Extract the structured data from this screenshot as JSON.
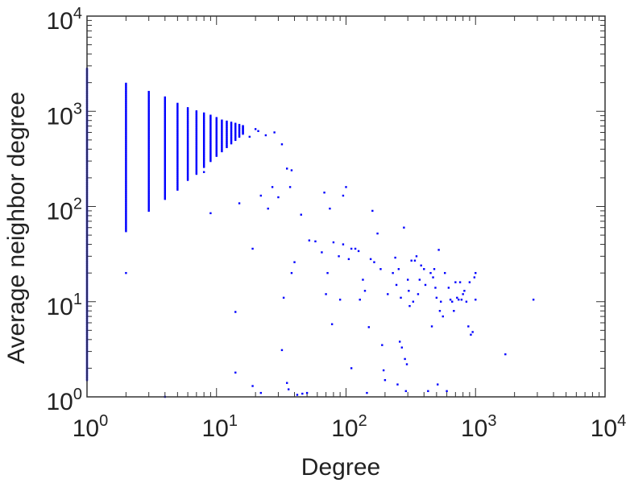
{
  "chart_data": {
    "type": "scatter",
    "title": "",
    "xlabel": "Degree",
    "ylabel": "Average neighbor degree",
    "xscale": "log",
    "yscale": "log",
    "xlim": [
      1,
      10000
    ],
    "ylim": [
      1,
      10000
    ],
    "grid": false,
    "marker_color": "#0000ff",
    "xticks": [
      {
        "value": 1,
        "base": "10",
        "exp": "0"
      },
      {
        "value": 10,
        "base": "10",
        "exp": "1"
      },
      {
        "value": 100,
        "base": "10",
        "exp": "2"
      },
      {
        "value": 1000,
        "base": "10",
        "exp": "3"
      },
      {
        "value": 10000,
        "base": "10",
        "exp": "4"
      }
    ],
    "yticks": [
      {
        "value": 1,
        "base": "10",
        "exp": "0"
      },
      {
        "value": 10,
        "base": "10",
        "exp": "1"
      },
      {
        "value": 100,
        "base": "10",
        "exp": "2"
      },
      {
        "value": 1000,
        "base": "10",
        "exp": "3"
      },
      {
        "value": 10000,
        "base": "10",
        "exp": "4"
      }
    ],
    "columns": [
      {
        "x": 1,
        "ymin": 1.5,
        "ymax": 2800
      },
      {
        "x": 2,
        "ymin": 55,
        "ymax": 1950
      },
      {
        "x": 3,
        "ymin": 90,
        "ymax": 1600
      },
      {
        "x": 4,
        "ymin": 120,
        "ymax": 1400
      },
      {
        "x": 5,
        "ymin": 150,
        "ymax": 1200
      },
      {
        "x": 6,
        "ymin": 190,
        "ymax": 1080
      },
      {
        "x": 7,
        "ymin": 220,
        "ymax": 1000
      },
      {
        "x": 8,
        "ymin": 260,
        "ymax": 950
      },
      {
        "x": 9,
        "ymin": 300,
        "ymax": 900
      },
      {
        "x": 10,
        "ymin": 340,
        "ymax": 850
      },
      {
        "x": 11,
        "ymin": 380,
        "ymax": 800
      },
      {
        "x": 12,
        "ymin": 420,
        "ymax": 780
      },
      {
        "x": 13,
        "ymin": 460,
        "ymax": 760
      },
      {
        "x": 14,
        "ymin": 500,
        "ymax": 740
      },
      {
        "x": 15,
        "ymin": 540,
        "ymax": 720
      },
      {
        "x": 16,
        "ymin": 580,
        "ymax": 700
      }
    ],
    "points": [
      [
        2,
        20
      ],
      [
        4,
        1.0
      ],
      [
        8,
        230
      ],
      [
        9,
        85
      ],
      [
        14,
        7.8
      ],
      [
        14,
        1.8
      ],
      [
        15,
        108
      ],
      [
        18,
        540
      ],
      [
        19,
        36
      ],
      [
        19,
        1.3
      ],
      [
        20,
        650
      ],
      [
        21,
        620
      ],
      [
        22,
        130
      ],
      [
        22,
        1.1
      ],
      [
        24,
        560
      ],
      [
        25,
        95
      ],
      [
        27,
        160
      ],
      [
        28,
        600
      ],
      [
        30,
        125
      ],
      [
        32,
        3.1
      ],
      [
        32,
        450
      ],
      [
        33,
        11
      ],
      [
        35,
        1.4
      ],
      [
        35,
        250
      ],
      [
        36,
        1.2
      ],
      [
        37,
        160
      ],
      [
        38,
        240
      ],
      [
        38,
        20
      ],
      [
        40,
        26
      ],
      [
        42,
        1.05
      ],
      [
        45,
        82
      ],
      [
        46,
        1.08
      ],
      [
        50,
        1.1
      ],
      [
        52,
        44
      ],
      [
        58,
        43
      ],
      [
        65,
        33
      ],
      [
        68,
        140
      ],
      [
        70,
        12
      ],
      [
        72,
        20
      ],
      [
        75,
        95
      ],
      [
        78,
        5.8
      ],
      [
        80,
        42
      ],
      [
        88,
        30
      ],
      [
        90,
        10.5
      ],
      [
        95,
        130
      ],
      [
        100,
        160
      ],
      [
        95,
        40
      ],
      [
        105,
        28
      ],
      [
        110,
        2.0
      ],
      [
        110,
        36
      ],
      [
        118,
        36
      ],
      [
        125,
        34
      ],
      [
        128,
        10.5
      ],
      [
        135,
        17
      ],
      [
        140,
        13
      ],
      [
        145,
        1.1
      ],
      [
        150,
        5.4
      ],
      [
        155,
        28
      ],
      [
        160,
        90
      ],
      [
        165,
        26
      ],
      [
        175,
        52
      ],
      [
        185,
        22
      ],
      [
        190,
        3.5
      ],
      [
        195,
        1.9
      ],
      [
        200,
        1.5
      ],
      [
        210,
        12
      ],
      [
        230,
        20
      ],
      [
        240,
        29
      ],
      [
        245,
        15
      ],
      [
        250,
        1.35
      ],
      [
        255,
        22
      ],
      [
        260,
        3.8
      ],
      [
        265,
        11
      ],
      [
        270,
        3.3
      ],
      [
        280,
        60
      ],
      [
        285,
        2.5
      ],
      [
        290,
        1.15
      ],
      [
        295,
        2.2
      ],
      [
        300,
        17
      ],
      [
        305,
        13
      ],
      [
        310,
        9
      ],
      [
        320,
        27
      ],
      [
        330,
        10
      ],
      [
        340,
        27
      ],
      [
        350,
        30
      ],
      [
        360,
        12
      ],
      [
        370,
        17
      ],
      [
        380,
        24
      ],
      [
        400,
        22
      ],
      [
        410,
        15
      ],
      [
        430,
        1.15
      ],
      [
        450,
        20
      ],
      [
        460,
        5.5
      ],
      [
        470,
        18
      ],
      [
        480,
        22
      ],
      [
        490,
        14
      ],
      [
        500,
        11
      ],
      [
        510,
        1.35
      ],
      [
        520,
        35
      ],
      [
        530,
        8
      ],
      [
        540,
        10
      ],
      [
        560,
        7
      ],
      [
        580,
        20
      ],
      [
        600,
        1.15
      ],
      [
        620,
        14
      ],
      [
        640,
        10.5
      ],
      [
        660,
        10
      ],
      [
        680,
        8
      ],
      [
        700,
        16
      ],
      [
        720,
        11
      ],
      [
        740,
        10.5
      ],
      [
        760,
        16
      ],
      [
        780,
        10.5
      ],
      [
        800,
        12
      ],
      [
        820,
        13
      ],
      [
        850,
        10
      ],
      [
        880,
        5.5
      ],
      [
        900,
        16
      ],
      [
        920,
        4.5
      ],
      [
        950,
        4.8
      ],
      [
        980,
        18
      ],
      [
        1000,
        20
      ],
      [
        1000,
        10.5
      ],
      [
        1700,
        2.8
      ],
      [
        2800,
        10.5
      ]
    ]
  }
}
